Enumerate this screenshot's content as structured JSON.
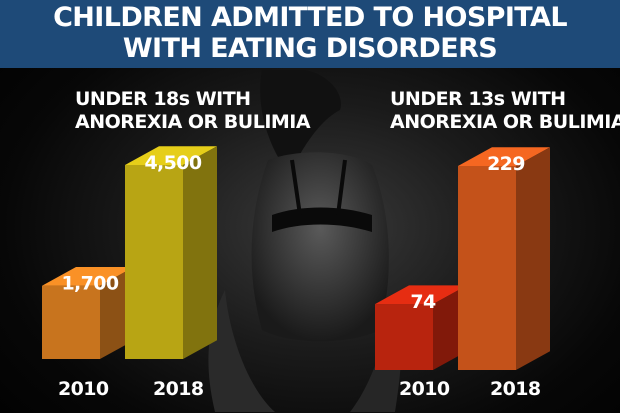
{
  "title_line1": "CHILDREN ADMITTED TO HOSPITAL",
  "title_line2": "WITH EATING DISORDERS",
  "chart_data": [
    {
      "type": "bar",
      "title_line1": "UNDER 18s WITH",
      "title_line2": "ANOREXIA OR BULIMIA",
      "categories": [
        "2010",
        "2018"
      ],
      "values": [
        1700,
        4500
      ],
      "value_labels": [
        "1,700",
        "4,500"
      ],
      "colors": [
        "#c8741e",
        "#b8a514"
      ],
      "ylim": [
        0,
        4500
      ]
    },
    {
      "type": "bar",
      "title_line1": "UNDER 13s WITH",
      "title_line2": "ANOREXIA OR BULIMIA",
      "categories": [
        "2010",
        "2018"
      ],
      "values": [
        74,
        229
      ],
      "value_labels": [
        "74",
        "229"
      ],
      "colors": [
        "#b8240e",
        "#c4521a"
      ],
      "ylim": [
        0,
        229
      ]
    }
  ]
}
